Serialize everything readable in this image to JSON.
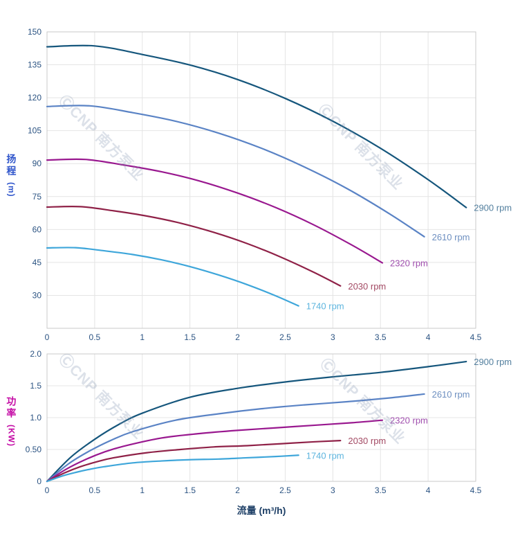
{
  "watermark": {
    "text": "ⒸCNP 南方泵业"
  },
  "colors": {
    "grid": "#e4e4e4",
    "axis": "#c9c9c9",
    "tick_text": "#2b5382",
    "head_axis_label": "#2f55cb",
    "power_axis_label": "#c40ba5",
    "flow_axis_label": "#1d3f66"
  },
  "chart_data": [
    {
      "type": "line",
      "title": "",
      "xlabel": "",
      "ylabel": "扬程",
      "ylabel_unit": "(m)",
      "xlim": [
        0,
        4.5
      ],
      "ylim": [
        15,
        150
      ],
      "grid": true,
      "legend_position": "end-of-line",
      "xtick_values": [
        0,
        0.5,
        1,
        1.5,
        2,
        2.5,
        3,
        3.5,
        4,
        4.5
      ],
      "xtick_labels": [
        "0",
        "0.5",
        "1",
        "1.5",
        "2",
        "2.5",
        "3",
        "3.5",
        "4",
        "4.5"
      ],
      "ytick_values": [
        30,
        45,
        60,
        75,
        90,
        105,
        120,
        135,
        150
      ],
      "ytick_labels": [
        "30",
        "45",
        "60",
        "75",
        "90",
        "105",
        "120",
        "135",
        "150"
      ],
      "series": [
        {
          "name": "2900 rpm",
          "color": "#15567c",
          "label_color": "#54809f",
          "points": [
            [
              0,
              143.2
            ],
            [
              0.5,
              143.6
            ],
            [
              1,
              139.7
            ],
            [
              1.5,
              134.9
            ],
            [
              2,
              128.3
            ],
            [
              2.5,
              119.7
            ],
            [
              3,
              109.3
            ],
            [
              3.5,
              97.0
            ],
            [
              4,
              82.7
            ],
            [
              4.4,
              70.0
            ]
          ]
        },
        {
          "name": "2610 rpm",
          "color": "#5a83c5",
          "label_color": "#6d8fc0",
          "points": [
            [
              0,
              116.0
            ],
            [
              0.45,
              116.3
            ],
            [
              0.9,
              113.2
            ],
            [
              1.35,
              109.3
            ],
            [
              1.8,
              103.9
            ],
            [
              2.25,
              97.0
            ],
            [
              2.7,
              88.5
            ],
            [
              3.15,
              78.6
            ],
            [
              3.6,
              67.0
            ],
            [
              3.96,
              56.7
            ]
          ]
        },
        {
          "name": "2320 rpm",
          "color": "#99188f",
          "label_color": "#a04fae",
          "points": [
            [
              0,
              91.6
            ],
            [
              0.4,
              91.9
            ],
            [
              0.8,
              89.4
            ],
            [
              1.2,
              86.3
            ],
            [
              1.6,
              82.1
            ],
            [
              2,
              76.6
            ],
            [
              2.4,
              70.0
            ],
            [
              2.8,
              62.1
            ],
            [
              3.2,
              52.9
            ],
            [
              3.52,
              44.8
            ]
          ]
        },
        {
          "name": "2030 rpm",
          "color": "#8f2147",
          "label_color": "#a34a64",
          "points": [
            [
              0,
              70.2
            ],
            [
              0.35,
              70.4
            ],
            [
              0.7,
              68.5
            ],
            [
              1.05,
              66.1
            ],
            [
              1.4,
              62.9
            ],
            [
              1.75,
              58.7
            ],
            [
              2.1,
              53.6
            ],
            [
              2.45,
              47.5
            ],
            [
              2.8,
              40.5
            ],
            [
              3.08,
              34.3
            ]
          ]
        },
        {
          "name": "1740 rpm",
          "color": "#3ea6da",
          "label_color": "#5cb4de",
          "points": [
            [
              0,
              51.6
            ],
            [
              0.3,
              51.7
            ],
            [
              0.6,
              50.3
            ],
            [
              0.9,
              48.6
            ],
            [
              1.2,
              46.2
            ],
            [
              1.5,
              43.1
            ],
            [
              1.8,
              39.3
            ],
            [
              2.1,
              34.9
            ],
            [
              2.4,
              29.8
            ],
            [
              2.64,
              25.2
            ]
          ]
        }
      ]
    },
    {
      "type": "line",
      "title": "",
      "xlabel": "流量 (m³/h)",
      "ylabel": "功率",
      "ylabel_unit": "(KW)",
      "xlim": [
        0,
        4.5
      ],
      "ylim": [
        0,
        2
      ],
      "grid": true,
      "legend_position": "end-of-line",
      "xtick_values": [
        0,
        0.5,
        1,
        1.5,
        2,
        2.5,
        3,
        3.5,
        4,
        4.5
      ],
      "xtick_labels": [
        "0",
        "0.5",
        "1",
        "1.5",
        "2",
        "2.5",
        "3",
        "3.5",
        "4",
        "4.5"
      ],
      "ytick_values": [
        0,
        0.5,
        1,
        1.5,
        2
      ],
      "ytick_labels": [
        "0",
        "0.50",
        "1.0",
        "1.5",
        "2.0"
      ],
      "series": [
        {
          "name": "2900 rpm",
          "color": "#15567c",
          "label_color": "#54809f",
          "points": [
            [
              0,
              0
            ],
            [
              0.25,
              0.38
            ],
            [
              0.5,
              0.66
            ],
            [
              0.75,
              0.89
            ],
            [
              1,
              1.07
            ],
            [
              1.5,
              1.32
            ],
            [
              2,
              1.46
            ],
            [
              2.5,
              1.56
            ],
            [
              3,
              1.64
            ],
            [
              3.5,
              1.71
            ],
            [
              4,
              1.8
            ],
            [
              4.4,
              1.88
            ]
          ]
        },
        {
          "name": "2610 rpm",
          "color": "#5a83c5",
          "label_color": "#6d8fc0",
          "points": [
            [
              0,
              0
            ],
            [
              0.23,
              0.28
            ],
            [
              0.45,
              0.48
            ],
            [
              0.68,
              0.65
            ],
            [
              0.9,
              0.78
            ],
            [
              1.35,
              0.96
            ],
            [
              1.8,
              1.06
            ],
            [
              2.25,
              1.14
            ],
            [
              2.7,
              1.2
            ],
            [
              3.15,
              1.25
            ],
            [
              3.6,
              1.31
            ],
            [
              3.96,
              1.37
            ]
          ]
        },
        {
          "name": "2320 rpm",
          "color": "#99188f",
          "label_color": "#a04fae",
          "points": [
            [
              0,
              0
            ],
            [
              0.2,
              0.19
            ],
            [
              0.4,
              0.34
            ],
            [
              0.6,
              0.46
            ],
            [
              0.8,
              0.55
            ],
            [
              1.2,
              0.68
            ],
            [
              1.6,
              0.75
            ],
            [
              2,
              0.8
            ],
            [
              2.4,
              0.84
            ],
            [
              2.8,
              0.88
            ],
            [
              3.2,
              0.92
            ],
            [
              3.52,
              0.96
            ]
          ]
        },
        {
          "name": "2030 rpm",
          "color": "#8f2147",
          "label_color": "#a34a64",
          "points": [
            [
              0,
              0
            ],
            [
              0.18,
              0.13
            ],
            [
              0.35,
              0.23
            ],
            [
              0.53,
              0.31
            ],
            [
              0.7,
              0.37
            ],
            [
              1.05,
              0.45
            ],
            [
              1.4,
              0.5
            ],
            [
              1.75,
              0.54
            ],
            [
              2.1,
              0.56
            ],
            [
              2.45,
              0.59
            ],
            [
              2.8,
              0.62
            ],
            [
              3.08,
              0.64
            ]
          ]
        },
        {
          "name": "1740 rpm",
          "color": "#3ea6da",
          "label_color": "#5cb4de",
          "points": [
            [
              0,
              0
            ],
            [
              0.15,
              0.08
            ],
            [
              0.3,
              0.14
            ],
            [
              0.45,
              0.19
            ],
            [
              0.6,
              0.23
            ],
            [
              0.9,
              0.29
            ],
            [
              1.2,
              0.32
            ],
            [
              1.5,
              0.34
            ],
            [
              1.8,
              0.35
            ],
            [
              2.1,
              0.37
            ],
            [
              2.4,
              0.39
            ],
            [
              2.64,
              0.41
            ]
          ]
        }
      ]
    }
  ]
}
